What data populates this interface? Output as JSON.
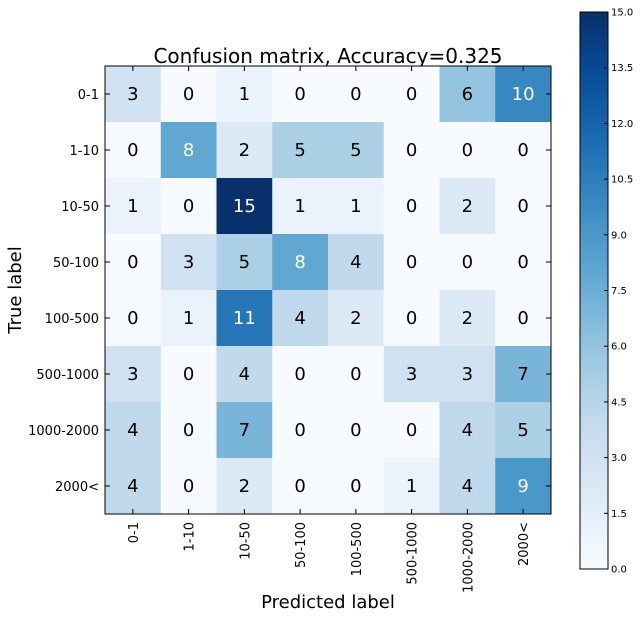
{
  "chart_data": {
    "type": "heatmap",
    "title": "Confusion matrix, Accuracy=0.325",
    "xlabel": "Predicted label",
    "ylabel": "True label",
    "x_categories": [
      "0-1",
      "1-10",
      "10-50",
      "50-100",
      "100-500",
      "500-1000",
      "1000-2000",
      "2000<"
    ],
    "y_categories": [
      "0-1",
      "1-10",
      "10-50",
      "50-100",
      "100-500",
      "500-1000",
      "1000-2000",
      "2000<"
    ],
    "values": [
      [
        3,
        0,
        1,
        0,
        0,
        0,
        6,
        10
      ],
      [
        0,
        8,
        2,
        5,
        5,
        0,
        0,
        0
      ],
      [
        1,
        0,
        15,
        1,
        1,
        0,
        2,
        0
      ],
      [
        0,
        3,
        5,
        8,
        4,
        0,
        0,
        0
      ],
      [
        0,
        1,
        11,
        4,
        2,
        0,
        2,
        0
      ],
      [
        3,
        0,
        4,
        0,
        0,
        3,
        3,
        7
      ],
      [
        4,
        0,
        7,
        0,
        0,
        0,
        4,
        5
      ],
      [
        4,
        0,
        2,
        0,
        0,
        1,
        4,
        9
      ]
    ],
    "colormap": "Blues",
    "vmin": 0,
    "vmax": 15,
    "colorbar_ticks": [
      "0.0",
      "1.5",
      "3.0",
      "4.5",
      "6.0",
      "7.5",
      "9.0",
      "10.5",
      "12.0",
      "13.5",
      "15.0"
    ],
    "colorbar_location": "right",
    "grid": false
  }
}
